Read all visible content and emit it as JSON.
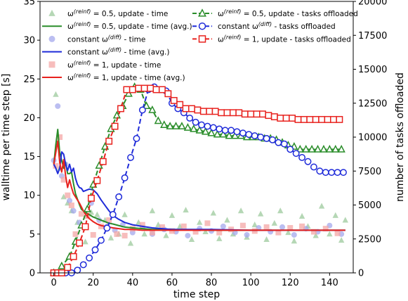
{
  "chart_data": {
    "type": "line",
    "title": "",
    "xlabel": "time step",
    "ylabel_left": "walltime per time step [s]",
    "ylabel_right": "number of tasks offloaded",
    "xlim": [
      -7,
      152
    ],
    "ylim_left": [
      0,
      35
    ],
    "ylim_right": [
      0,
      20000
    ],
    "xticks": [
      0,
      20,
      40,
      60,
      80,
      100,
      120,
      140
    ],
    "yticks_left": [
      0,
      5,
      10,
      15,
      20,
      25,
      30,
      35
    ],
    "yticks_right": [
      0,
      2500,
      5000,
      7500,
      10000,
      12500,
      15000,
      17500,
      20000
    ],
    "grid": false,
    "legend_left_position": "top-left",
    "legend_right_position": "top-center",
    "colors": {
      "green": "#2a8d2a",
      "blue": "#1f2bd9",
      "red": "#e8221e",
      "green_scatter": "#9cc99c",
      "blue_scatter": "#a4a8ec",
      "red_scatter": "#f4a7a5"
    },
    "legend_left": [
      {
        "series": "green_time",
        "marker": "triangle",
        "text": "ω(reinf) = 0.5, update - time"
      },
      {
        "series": "green_avg",
        "marker": "line",
        "text": "ω(reinf) = 0.5, update - time (avg.)"
      },
      {
        "series": "blue_time",
        "marker": "circle",
        "text": "constant ω(diff) - time"
      },
      {
        "series": "blue_avg",
        "marker": "line",
        "text": "constant ω(diff) - time (avg.)"
      },
      {
        "series": "red_time",
        "marker": "square",
        "text": "ω(reinf) = 1, update - time"
      },
      {
        "series": "red_avg",
        "marker": "line",
        "text": "ω(reinf) = 1, update - time (avg.)"
      }
    ],
    "legend_right": [
      {
        "series": "green_tasks",
        "marker": "triangle",
        "text": "ω(reinf) = 0.5, update - tasks offloaded"
      },
      {
        "series": "blue_tasks",
        "marker": "circle",
        "text": "constant ω(diff) - tasks offloaded"
      },
      {
        "series": "red_tasks",
        "marker": "square",
        "text": "ω(reinf) = 1, update - tasks offloaded"
      }
    ],
    "series": [
      {
        "id": "green_tasks",
        "axis": "right",
        "style": "dashed-marker",
        "marker": "triangle",
        "color": "green",
        "x": [
          0,
          4,
          8,
          11,
          14,
          17,
          20,
          23,
          26,
          29,
          32,
          35,
          38,
          41,
          44,
          47,
          50,
          53,
          56,
          59,
          62,
          65,
          68,
          71,
          74,
          77,
          80,
          83,
          86,
          89,
          92,
          95,
          98,
          101,
          104,
          107,
          110,
          113,
          116,
          119,
          122,
          125,
          128,
          131,
          134,
          137,
          140,
          143,
          146
        ],
        "y": [
          0,
          500,
          1200,
          2300,
          3500,
          4700,
          6500,
          7900,
          9300,
          10600,
          11600,
          12300,
          13200,
          13700,
          13500,
          12300,
          12000,
          11200,
          10900,
          10800,
          10800,
          10800,
          10700,
          10600,
          10500,
          10400,
          10300,
          10200,
          10200,
          10100,
          10100,
          10100,
          10000,
          10000,
          10000,
          9900,
          9900,
          9800,
          9600,
          9400,
          9300,
          9100,
          9100,
          9100,
          9100,
          9100,
          9100,
          9100,
          9100
        ]
      },
      {
        "id": "blue_tasks",
        "axis": "right",
        "style": "dashed-marker",
        "marker": "circle",
        "color": "blue",
        "x": [
          0,
          3,
          6,
          9,
          12,
          15,
          18,
          21,
          24,
          27,
          30,
          33,
          36,
          39,
          42,
          45,
          48,
          51,
          54,
          57,
          60,
          63,
          66,
          69,
          72,
          75,
          78,
          81,
          84,
          87,
          90,
          93,
          96,
          99,
          102,
          105,
          108,
          111,
          114,
          117,
          120,
          123,
          126,
          129,
          132,
          135,
          138,
          141,
          144,
          147
        ],
        "y": [
          0,
          0,
          0,
          0,
          200,
          600,
          1100,
          1700,
          2400,
          3300,
          4300,
          5600,
          7000,
          8500,
          9900,
          12000,
          13500,
          13700,
          13500,
          13400,
          12500,
          12100,
          11800,
          11400,
          11100,
          10900,
          10800,
          10700,
          10600,
          10500,
          10500,
          10400,
          10300,
          10200,
          10100,
          10000,
          9900,
          9800,
          9600,
          9500,
          9100,
          8800,
          8500,
          8200,
          7800,
          7500,
          7400,
          7400,
          7400,
          7400
        ]
      },
      {
        "id": "red_tasks",
        "axis": "right",
        "style": "dashed-marker",
        "marker": "square",
        "color": "red",
        "x": [
          0,
          2,
          4,
          7,
          10,
          13,
          16,
          19,
          22,
          25,
          28,
          31,
          34,
          37,
          40,
          43,
          46,
          49,
          52,
          55,
          58,
          61,
          64,
          67,
          70,
          73,
          76,
          79,
          82,
          85,
          88,
          91,
          94,
          97,
          100,
          103,
          106,
          109,
          112,
          115,
          118,
          121,
          124,
          127,
          130,
          133,
          136,
          139,
          142,
          145
        ],
        "y": [
          0,
          0,
          0,
          400,
          1200,
          2200,
          3400,
          5500,
          6800,
          8200,
          9700,
          10800,
          12100,
          13500,
          13500,
          13600,
          13600,
          13600,
          13500,
          13500,
          13200,
          12700,
          12400,
          12100,
          12100,
          12000,
          11900,
          11900,
          11900,
          11800,
          11800,
          11800,
          11800,
          11700,
          11700,
          11700,
          11700,
          11600,
          11500,
          11400,
          11400,
          11400,
          11300,
          11300,
          11300,
          11300,
          11300,
          11300,
          11300,
          11300
        ]
      },
      {
        "id": "green_avg",
        "axis": "left",
        "style": "line",
        "color": "green",
        "x": [
          0,
          1,
          2,
          3,
          4,
          5,
          6,
          7,
          8,
          9,
          10,
          11,
          12,
          13,
          14,
          15,
          16,
          18,
          20,
          22,
          24,
          26,
          28,
          30,
          33,
          36,
          40,
          45,
          50,
          60,
          80,
          100,
          120,
          148
        ],
        "y": [
          14.0,
          16.5,
          18.5,
          15.5,
          14.5,
          13.5,
          14.2,
          12.8,
          12.8,
          13.0,
          11.5,
          10.2,
          9.5,
          8.8,
          8.2,
          8.0,
          7.8,
          7.5,
          7.2,
          7.0,
          6.8,
          6.6,
          6.4,
          6.3,
          6.1,
          5.9,
          5.8,
          5.7,
          5.6,
          5.6,
          5.5,
          5.5,
          5.5,
          5.5
        ]
      },
      {
        "id": "blue_avg",
        "axis": "left",
        "style": "line",
        "color": "blue",
        "x": [
          0,
          1,
          2,
          3,
          4,
          5,
          6,
          7,
          8,
          9,
          10,
          11,
          12,
          13,
          14,
          15,
          16,
          17,
          18,
          20,
          22,
          24,
          26,
          28,
          30,
          33,
          36,
          40,
          45,
          50,
          55,
          60,
          80,
          100,
          120,
          148
        ],
        "y": [
          14.0,
          13.5,
          12.8,
          13.5,
          15.6,
          15.3,
          14.0,
          13.2,
          14.0,
          13.0,
          13.5,
          12.2,
          11.4,
          11.0,
          10.9,
          10.5,
          10.6,
          10.7,
          10.8,
          10.7,
          10.2,
          9.4,
          8.7,
          8.0,
          7.4,
          6.9,
          6.5,
          6.2,
          6.0,
          5.8,
          5.7,
          5.6,
          5.6,
          5.5,
          5.5,
          5.5
        ]
      },
      {
        "id": "red_avg",
        "axis": "left",
        "style": "line",
        "color": "red",
        "x": [
          0,
          1,
          2,
          3,
          4,
          5,
          6,
          7,
          8,
          9,
          10,
          11,
          12,
          13,
          14,
          15,
          16,
          18,
          20,
          22,
          24,
          26,
          28,
          30,
          33,
          36,
          40,
          45,
          50,
          60,
          80,
          100,
          120,
          148
        ],
        "y": [
          14.0,
          15.5,
          17.0,
          14.2,
          13.0,
          14.6,
          12.5,
          11.0,
          12.0,
          11.0,
          10.2,
          9.8,
          9.4,
          9.0,
          8.5,
          8.0,
          7.6,
          7.0,
          6.6,
          6.3,
          6.1,
          6.0,
          5.9,
          5.8,
          5.7,
          5.6,
          5.6,
          5.5,
          5.5,
          5.5,
          5.5,
          5.5,
          5.5,
          5.5
        ]
      },
      {
        "id": "green_time",
        "axis": "left",
        "style": "scatter",
        "marker": "triangle",
        "color": "green_scatter",
        "x": [
          1,
          3,
          5,
          7,
          9,
          12,
          16,
          19,
          22,
          26,
          29,
          33,
          36,
          39,
          43,
          46,
          50,
          53,
          57,
          60,
          64,
          67,
          70,
          74,
          77,
          81,
          84,
          88,
          91,
          95,
          98,
          102,
          105,
          108,
          112,
          115,
          119,
          122,
          126,
          129,
          133,
          136,
          140,
          143,
          146,
          148
        ],
        "y": [
          23.0,
          13.5,
          9.8,
          9.0,
          8.0,
          6.5,
          4.0,
          7.8,
          7.5,
          6.8,
          4.5,
          5.0,
          7.5,
          3.8,
          6.5,
          5.0,
          8.0,
          6.2,
          4.8,
          7.4,
          6.0,
          8.1,
          4.3,
          6.5,
          5.3,
          7.7,
          4.4,
          6.8,
          5.0,
          8.0,
          4.6,
          6.2,
          7.6,
          4.3,
          6.4,
          8.0,
          5.2,
          4.1,
          7.3,
          6.0,
          4.8,
          8.6,
          5.0,
          7.4,
          4.2,
          6.8
        ]
      },
      {
        "id": "blue_time",
        "axis": "left",
        "style": "scatter",
        "marker": "circle",
        "color": "blue_scatter",
        "x": [
          0,
          2,
          4,
          6,
          8,
          10,
          13,
          16,
          19,
          23,
          27,
          31,
          35,
          40,
          45,
          50,
          56,
          62,
          68,
          74,
          80,
          86,
          92,
          98,
          104,
          110,
          116,
          122,
          128,
          134,
          140,
          146
        ],
        "y": [
          14.5,
          21.5,
          12.5,
          14.0,
          9.3,
          8.0,
          6.5,
          6.0,
          9.0,
          6.8,
          6.0,
          5.5,
          6.2,
          5.2,
          5.8,
          5.0,
          5.6,
          5.3,
          4.8,
          5.7,
          5.4,
          6.0,
          5.2,
          4.9,
          5.8,
          5.3,
          5.9,
          4.9,
          5.7,
          5.3,
          6.1,
          5.0
        ]
      },
      {
        "id": "red_time",
        "axis": "left",
        "style": "scatter",
        "marker": "square",
        "color": "red_scatter",
        "x": [
          1,
          3,
          5,
          7,
          9,
          11,
          14,
          17,
          20,
          24,
          28,
          32,
          36,
          40,
          45,
          50,
          55,
          60,
          66,
          72,
          78,
          84,
          90,
          96,
          102,
          108,
          114,
          120,
          126,
          132,
          138,
          144
        ],
        "y": [
          13.8,
          17.5,
          12.0,
          10.0,
          8.7,
          5.0,
          7.6,
          7.3,
          4.9,
          6.0,
          6.8,
          5.0,
          4.8,
          5.7,
          6.2,
          5.2,
          5.9,
          5.4,
          6.0,
          5.3,
          6.4,
          5.2,
          5.6,
          6.1,
          5.4,
          5.9,
          5.2,
          5.8,
          6.0,
          5.3,
          5.7,
          5.1
        ]
      }
    ]
  }
}
